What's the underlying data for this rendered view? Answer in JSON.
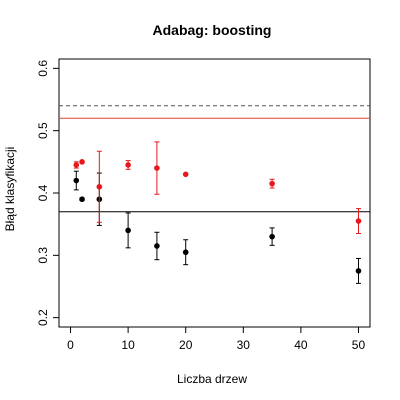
{
  "chart_data": {
    "type": "scatter",
    "title": "Adabag: boosting",
    "xlabel": "Liczba drzew",
    "ylabel": "Błąd klasyfikacji",
    "xlim": [
      -2,
      52
    ],
    "ylim": [
      0.185,
      0.615
    ],
    "xticks": [
      0,
      10,
      20,
      30,
      40,
      50
    ],
    "yticks": [
      0.2,
      0.3,
      0.4,
      0.5,
      0.6
    ],
    "xtick_labels": [
      "0",
      "10",
      "20",
      "30",
      "40",
      "50"
    ],
    "ytick_labels": [
      "0.2",
      "0.3",
      "0.4",
      "0.5",
      "0.6"
    ],
    "grid": false,
    "reference_lines": [
      {
        "y": 0.54,
        "style": "dashed",
        "color": "#555555"
      },
      {
        "y": 0.52,
        "style": "solid",
        "color": "#e8413a"
      },
      {
        "y": 0.37,
        "style": "solid",
        "color": "#000000"
      }
    ],
    "series": [
      {
        "color": "#000000",
        "points": [
          {
            "x": 1,
            "y": 0.42,
            "lo": 0.405,
            "hi": 0.435
          },
          {
            "x": 2,
            "y": 0.39,
            "lo": 0.388,
            "hi": 0.392
          },
          {
            "x": 5,
            "y": 0.39,
            "lo": 0.348,
            "hi": 0.432
          },
          {
            "x": 10,
            "y": 0.34,
            "lo": 0.312,
            "hi": 0.368
          },
          {
            "x": 15,
            "y": 0.315,
            "lo": 0.293,
            "hi": 0.337
          },
          {
            "x": 20,
            "y": 0.305,
            "lo": 0.285,
            "hi": 0.325
          },
          {
            "x": 35,
            "y": 0.33,
            "lo": 0.316,
            "hi": 0.344
          },
          {
            "x": 50,
            "y": 0.275,
            "lo": 0.255,
            "hi": 0.295
          }
        ]
      },
      {
        "color": "#e8171c",
        "points": [
          {
            "x": 1,
            "y": 0.445,
            "lo": 0.44,
            "hi": 0.45
          },
          {
            "x": 2,
            "y": 0.45,
            "lo": 0.449,
            "hi": 0.451
          },
          {
            "x": 5,
            "y": 0.41,
            "lo": 0.353,
            "hi": 0.467
          },
          {
            "x": 10,
            "y": 0.445,
            "lo": 0.438,
            "hi": 0.452
          },
          {
            "x": 15,
            "y": 0.44,
            "lo": 0.398,
            "hi": 0.482
          },
          {
            "x": 20,
            "y": 0.43,
            "lo": 0.429,
            "hi": 0.431
          },
          {
            "x": 35,
            "y": 0.415,
            "lo": 0.408,
            "hi": 0.422
          },
          {
            "x": 50,
            "y": 0.355,
            "lo": 0.335,
            "hi": 0.375
          }
        ]
      }
    ]
  }
}
